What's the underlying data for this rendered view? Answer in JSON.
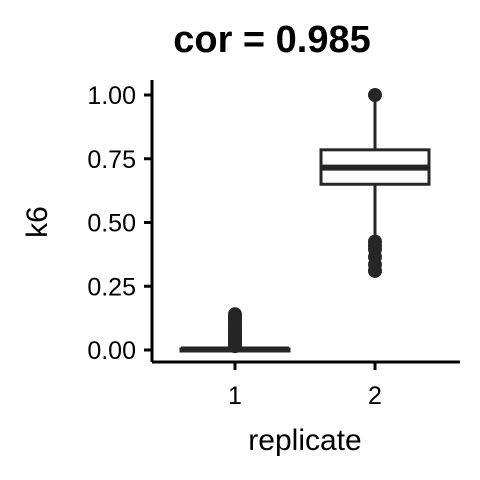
{
  "chart_data": {
    "type": "boxplot",
    "title": "cor = 0.985",
    "xlabel": "replicate",
    "ylabel": "k6",
    "ylim": [
      -0.05,
      1.05
    ],
    "yticks": [
      0.0,
      0.25,
      0.5,
      0.75,
      1.0
    ],
    "ytick_labels": [
      "0.00",
      "0.25",
      "0.50",
      "0.75",
      "1.00"
    ],
    "categories": [
      "1",
      "2"
    ],
    "boxes": [
      {
        "category": "1",
        "q1": 0.0,
        "median": 0.002,
        "q3": 0.004,
        "whisker_low": 0.0,
        "whisker_high": 0.008,
        "outliers": [
          0.015,
          0.02,
          0.025,
          0.03,
          0.035,
          0.04,
          0.045,
          0.05,
          0.055,
          0.06,
          0.065,
          0.07,
          0.075,
          0.08,
          0.09,
          0.1,
          0.11,
          0.12,
          0.13,
          0.14
        ]
      },
      {
        "category": "2",
        "q1": 0.65,
        "median": 0.715,
        "q3": 0.785,
        "whisker_low": 0.45,
        "whisker_high": 0.99,
        "outliers": [
          0.425,
          0.41,
          0.395,
          0.365,
          0.335,
          0.31,
          1.0
        ]
      }
    ],
    "grid": false,
    "legend": "none",
    "color": "#262626"
  }
}
